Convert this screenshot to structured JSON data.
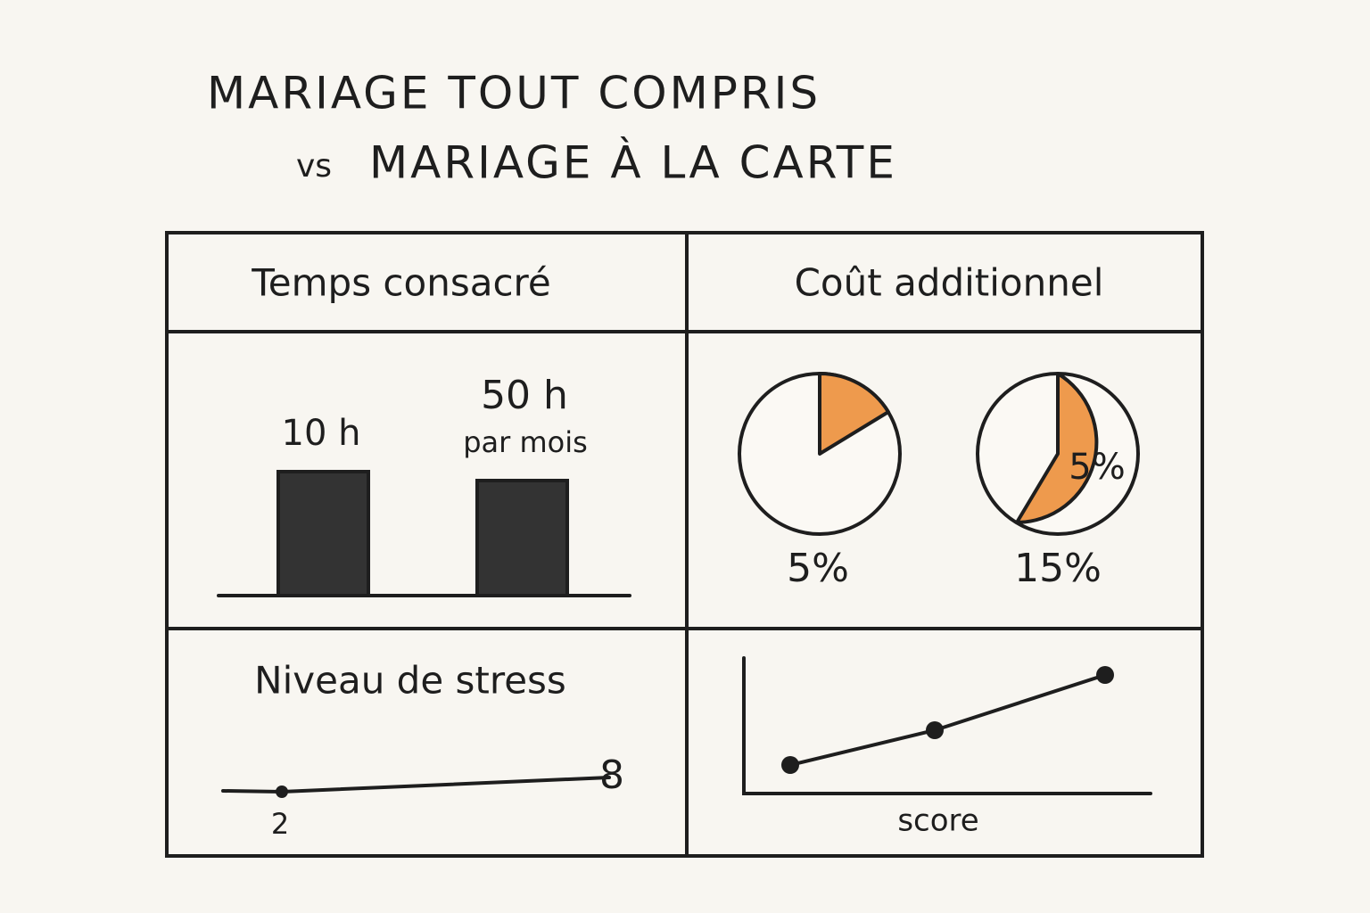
{
  "title": {
    "line1": "MARIAGE TOUT COMPRIS",
    "line2_prefix": "vs",
    "line2": "MARIAGE À LA CARTE"
  },
  "time_panel": {
    "heading": "Temps consacré",
    "left_label": "10 h",
    "right_label": "50 h",
    "right_sublabel": "par mois"
  },
  "cost_panel": {
    "heading": "Coût additionnel",
    "left_label": "5%",
    "right_label": "15%",
    "slice_label": "5%"
  },
  "stress_panel": {
    "heading": "Niveau de stress",
    "start_label": "2",
    "end_label": "8"
  },
  "score_panel": {
    "axis_label": "score"
  }
}
